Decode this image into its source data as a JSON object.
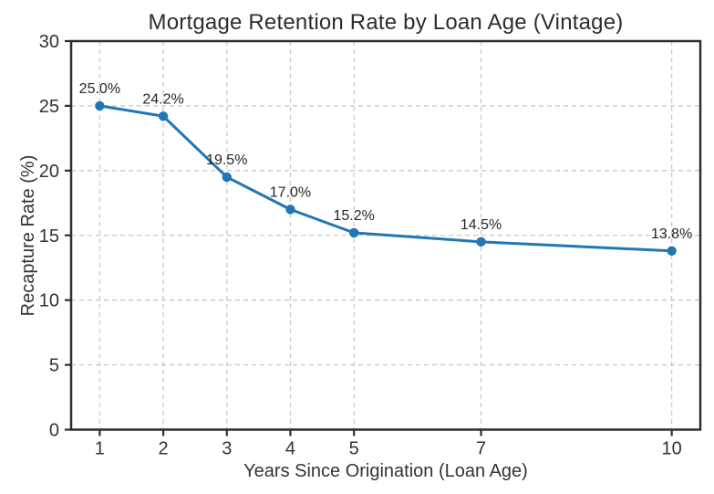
{
  "chart_data": {
    "type": "line",
    "title": "Mortgage Retention Rate by Loan Age (Vintage)",
    "xlabel": "Years Since Origination (Loan Age)",
    "ylabel": "Recapture Rate (%)",
    "x": [
      1,
      2,
      3,
      4,
      5,
      7,
      10
    ],
    "y": [
      25.0,
      24.2,
      19.5,
      17.0,
      15.2,
      14.5,
      13.8
    ],
    "point_labels": [
      "25.0%",
      "24.2%",
      "19.5%",
      "17.0%",
      "15.2%",
      "14.5%",
      "13.8%"
    ],
    "x_ticks": [
      1,
      2,
      3,
      4,
      5,
      7,
      10
    ],
    "x_tick_labels": [
      "1",
      "2",
      "3",
      "4",
      "5",
      "7",
      "10"
    ],
    "y_ticks": [
      0,
      5,
      10,
      15,
      20,
      25,
      30
    ],
    "y_tick_labels": [
      "0",
      "5",
      "10",
      "15",
      "20",
      "25",
      "30"
    ],
    "xlim": [
      0.55,
      10.45
    ],
    "ylim": [
      0,
      30
    ],
    "grid": true,
    "grid_style": "dashed",
    "legend": "none",
    "colors": {
      "line": "#1f77b4",
      "marker": "#1f77b4",
      "grid": "#c9c9c9",
      "spine": "#2e2e2e",
      "tick_text": "#333333",
      "title_text": "#2d2d2d",
      "point_label_text": "#262626",
      "background": "#ffffff"
    }
  }
}
